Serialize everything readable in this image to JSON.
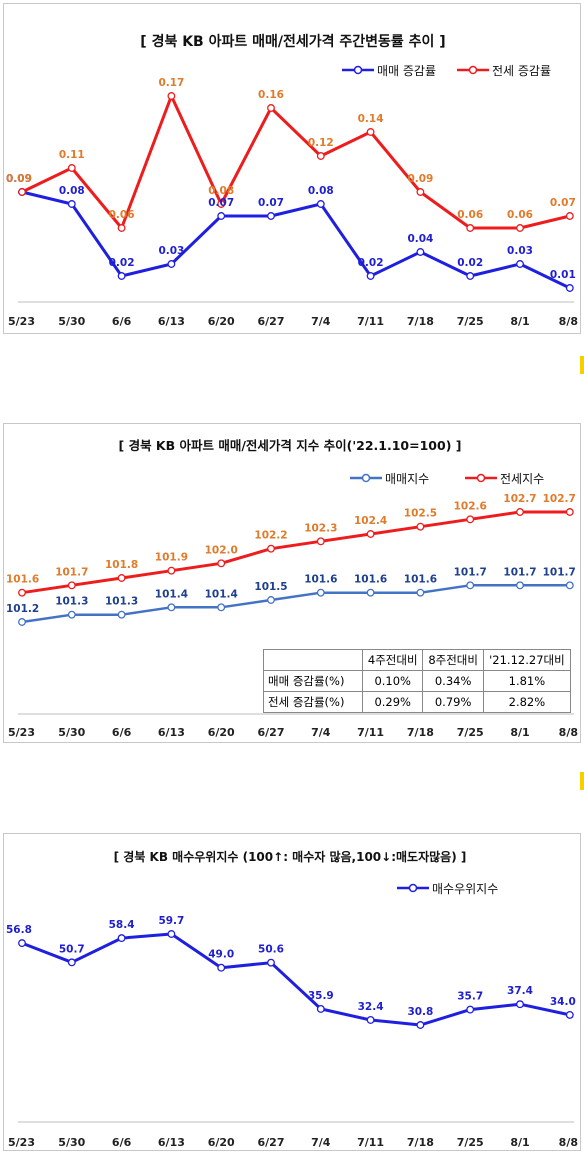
{
  "x_labels": [
    "5/23",
    "5/30",
    "6/6",
    "6/13",
    "6/20",
    "6/27",
    "7/4",
    "7/11",
    "7/18",
    "7/25",
    "8/1",
    "8/8"
  ],
  "chart_data": [
    {
      "type": "line",
      "title": "[ 경북  KB 아파트 매매/전세가격 주간변동률 추이 ]",
      "categories": [
        "5/23",
        "5/30",
        "6/6",
        "6/13",
        "6/20",
        "6/27",
        "7/4",
        "7/11",
        "7/18",
        "7/25",
        "8/1",
        "8/8"
      ],
      "series": [
        {
          "name": "매매 증감률",
          "color": "#1f1fe0",
          "values": [
            0.09,
            0.08,
            0.02,
            0.03,
            0.07,
            0.07,
            0.08,
            0.02,
            0.04,
            0.02,
            0.03,
            0.01
          ]
        },
        {
          "name": "전세 증감률",
          "color": "#ee1c1c",
          "values": [
            0.09,
            0.11,
            0.06,
            0.17,
            0.08,
            0.16,
            0.12,
            0.14,
            0.09,
            0.06,
            0.06,
            0.07
          ]
        }
      ],
      "legend": "top-right",
      "grid": false
    },
    {
      "type": "line",
      "title": "[ 경북  KB 아파트 매매/전세가격 지수 추이('22.1.10=100) ]",
      "categories": [
        "5/23",
        "5/30",
        "6/6",
        "6/13",
        "6/20",
        "6/27",
        "7/4",
        "7/11",
        "7/18",
        "7/25",
        "8/1",
        "8/8"
      ],
      "series": [
        {
          "name": "매매지수",
          "color": "#4472c4",
          "values": [
            101.2,
            101.3,
            101.3,
            101.4,
            101.4,
            101.5,
            101.6,
            101.6,
            101.6,
            101.7,
            101.7,
            101.7
          ]
        },
        {
          "name": "전세지수",
          "color": "#ee1c1c",
          "values": [
            101.6,
            101.7,
            101.8,
            101.9,
            102.0,
            102.2,
            102.3,
            102.4,
            102.5,
            102.6,
            102.7,
            102.7
          ]
        }
      ],
      "legend": "top-right",
      "grid": false,
      "table": {
        "headers": [
          "4주전대비",
          "8주전대비",
          "'21.12.27대비"
        ],
        "rows": [
          {
            "label": "매매 증감률(%)",
            "cells": [
              "0.10%",
              "0.34%",
              "1.81%"
            ]
          },
          {
            "label": "전세 증감률(%)",
            "cells": [
              "0.29%",
              "0.79%",
              "2.82%"
            ]
          }
        ]
      }
    },
    {
      "type": "line",
      "title": "[ 경북 KB 매수우위지수 (100↑: 매수자 많음,100↓:매도자많음) ]",
      "categories": [
        "5/23",
        "5/30",
        "6/6",
        "6/13",
        "6/20",
        "6/27",
        "7/4",
        "7/11",
        "7/18",
        "7/25",
        "8/1",
        "8/8"
      ],
      "series": [
        {
          "name": "매수우위지수",
          "color": "#1f1fe0",
          "values": [
            56.8,
            50.7,
            58.4,
            59.7,
            49.0,
            50.6,
            35.9,
            32.4,
            30.8,
            35.7,
            37.4,
            34.0
          ]
        }
      ],
      "legend": "top-right",
      "grid": false
    }
  ]
}
